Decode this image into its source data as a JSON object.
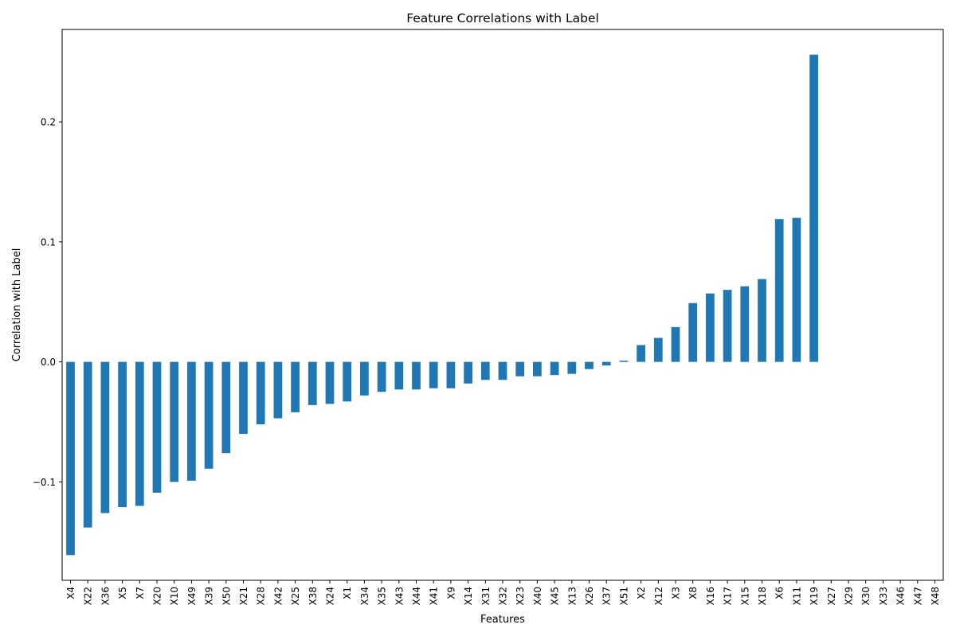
{
  "chart_data": {
    "type": "bar",
    "title": "Feature Correlations with Label",
    "xlabel": "Features",
    "ylabel": "Correlation with Label",
    "ylim": [
      -0.182,
      0.277
    ],
    "yticks": [
      -0.1,
      0.0,
      0.1,
      0.2
    ],
    "ytick_labels": [
      "−0.1",
      "0.0",
      "0.1",
      "0.2"
    ],
    "grid": false,
    "legend": "none",
    "bar_color": "#1f77b4",
    "categories": [
      "X4",
      "X22",
      "X36",
      "X5",
      "X7",
      "X20",
      "X10",
      "X49",
      "X39",
      "X50",
      "X21",
      "X28",
      "X42",
      "X25",
      "X38",
      "X24",
      "X1",
      "X34",
      "X35",
      "X43",
      "X44",
      "X41",
      "X9",
      "X14",
      "X31",
      "X32",
      "X23",
      "X40",
      "X45",
      "X13",
      "X26",
      "X37",
      "X51",
      "X2",
      "X12",
      "X3",
      "X8",
      "X16",
      "X17",
      "X15",
      "X18",
      "X6",
      "X11",
      "X19",
      "X27",
      "X29",
      "X30",
      "X33",
      "X46",
      "X47",
      "X48"
    ],
    "values": [
      -0.161,
      -0.138,
      -0.126,
      -0.121,
      -0.12,
      -0.109,
      -0.1,
      -0.099,
      -0.089,
      -0.076,
      -0.06,
      -0.052,
      -0.047,
      -0.042,
      -0.036,
      -0.035,
      -0.033,
      -0.028,
      -0.025,
      -0.023,
      -0.023,
      -0.022,
      -0.022,
      -0.018,
      -0.015,
      -0.015,
      -0.012,
      -0.012,
      -0.011,
      -0.01,
      -0.006,
      -0.003,
      0.001,
      0.014,
      0.02,
      0.029,
      0.049,
      0.057,
      0.06,
      0.063,
      0.069,
      0.119,
      0.12,
      0.256,
      null,
      null,
      null,
      null,
      null,
      null,
      null
    ]
  }
}
